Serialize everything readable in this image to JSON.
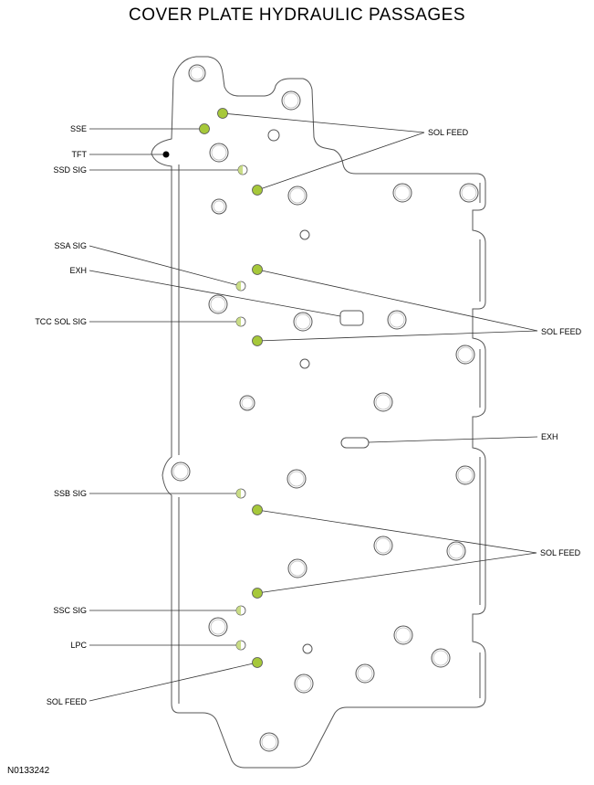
{
  "title": "COVER PLATE HYDRAULIC PASSAGES",
  "figure_id": "N0133242",
  "colors": {
    "sol_feed": "#a6c83a",
    "half_filled": "#c9dc86",
    "tft": "#000000",
    "outline": "#555555"
  },
  "left_labels": {
    "sse": "SSE",
    "tft": "TFT",
    "ssd_sig": "SSD SIG",
    "ssa_sig": "SSA SIG",
    "exh": "EXH",
    "tcc_sol_sig": "TCC SOL SIG",
    "ssb_sig": "SSB SIG",
    "ssc_sig": "SSC SIG",
    "lpc": "LPC",
    "sol_feed": "SOL FEED"
  },
  "right_labels": {
    "sol_feed_1": "SOL FEED",
    "sol_feed_2": "SOL FEED",
    "exh": "EXH",
    "sol_feed_3": "SOL FEED"
  }
}
